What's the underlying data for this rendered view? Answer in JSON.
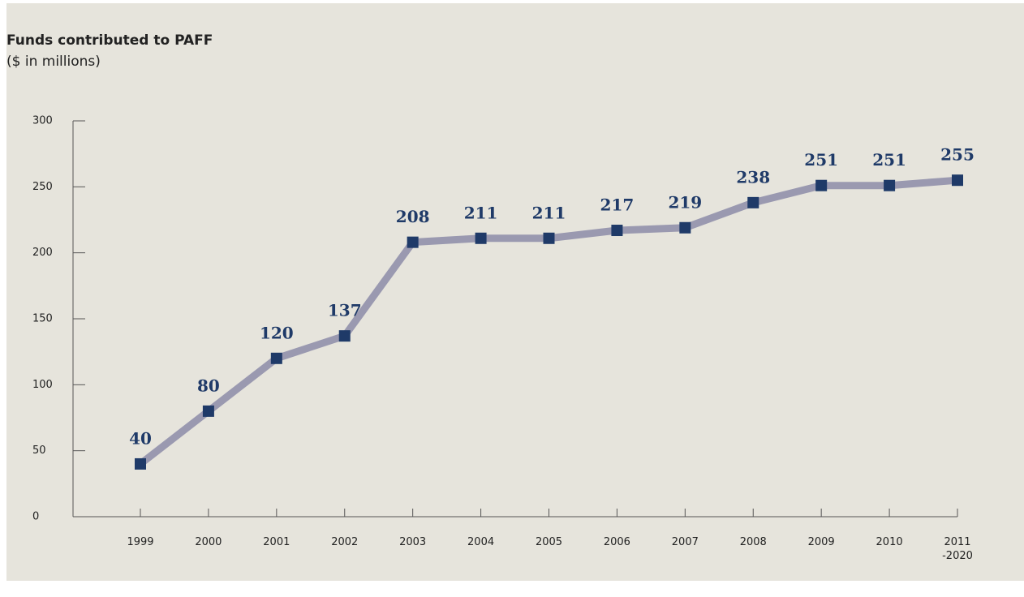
{
  "chart_data": {
    "type": "line",
    "title": "Funds contributed to PAFF",
    "subtitle": "($ in millions)",
    "categories": [
      "1999",
      "2000",
      "2001",
      "2002",
      "2003",
      "2004",
      "2005",
      "2006",
      "2007",
      "2008",
      "2009",
      "2010",
      "2011\n-2020"
    ],
    "series": [
      {
        "name": "Funds contributed",
        "color": "#1f3a68",
        "line_color": "#9a99b0",
        "values": [
          40,
          80,
          120,
          137,
          208,
          211,
          211,
          217,
          219,
          238,
          251,
          251,
          255
        ]
      }
    ],
    "ylim": [
      0,
      300
    ],
    "yticks": [
      0,
      50,
      100,
      150,
      200,
      250,
      300
    ],
    "grid": false
  }
}
